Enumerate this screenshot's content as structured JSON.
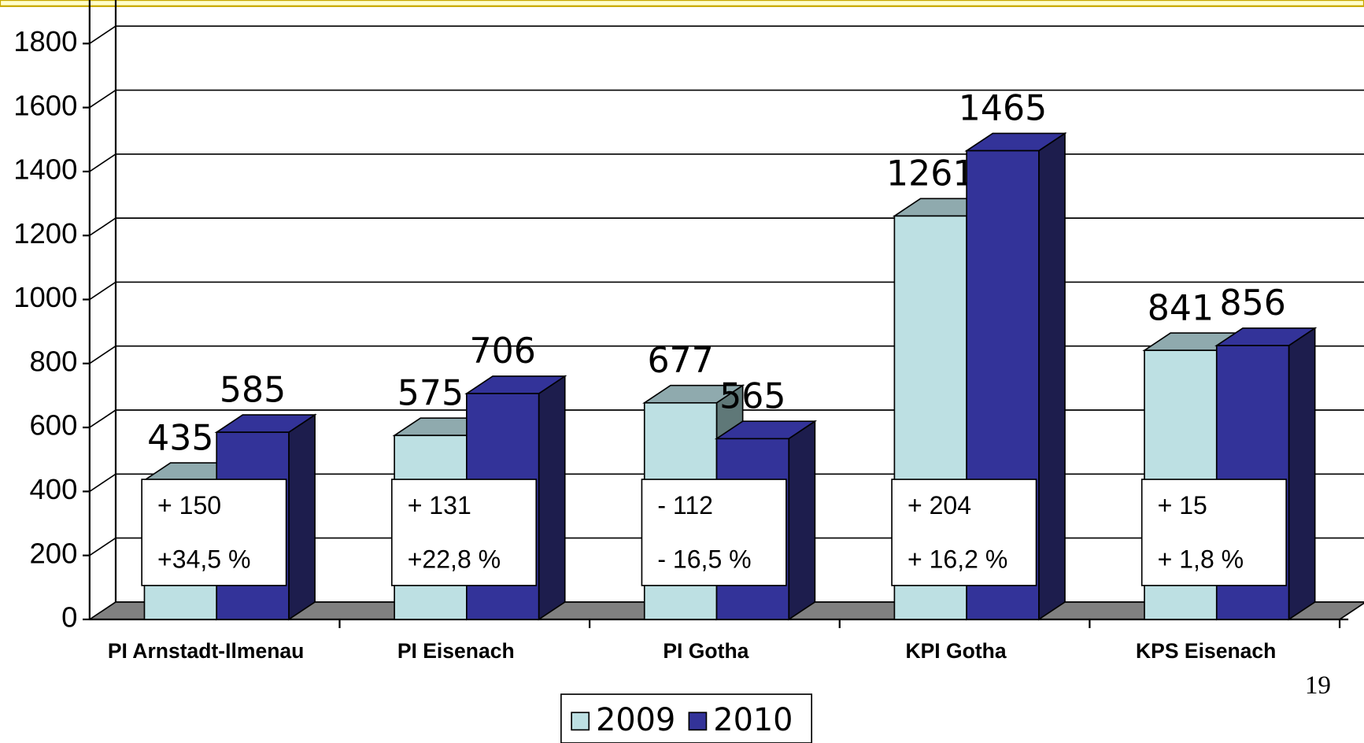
{
  "chart_data": {
    "type": "bar3d",
    "categories": [
      "PI Arnstadt-Ilmenau",
      "PI Eisenach",
      "PI Gotha",
      "KPI Gotha",
      "KPS Eisenach"
    ],
    "series": [
      {
        "name": "2009",
        "color": "#bde0e3",
        "values": [
          435,
          575,
          677,
          1261,
          841
        ]
      },
      {
        "name": "2010",
        "color": "#333399",
        "values": [
          585,
          706,
          565,
          1465,
          856
        ]
      }
    ],
    "ylim": [
      0,
      1800
    ],
    "yticks": [
      0,
      200,
      400,
      600,
      800,
      1000,
      1200,
      1400,
      1600,
      1800
    ],
    "grid": true,
    "annotations": [
      [
        "+ 150",
        "+34,5 %"
      ],
      [
        "+ 131",
        "+22,8 %"
      ],
      [
        "- 112",
        "- 16,5 %"
      ],
      [
        "+ 204",
        "+ 16,2 %"
      ],
      [
        "+ 15",
        "+ 1,8 %"
      ]
    ],
    "legend": "bottom",
    "page_number": "19"
  }
}
